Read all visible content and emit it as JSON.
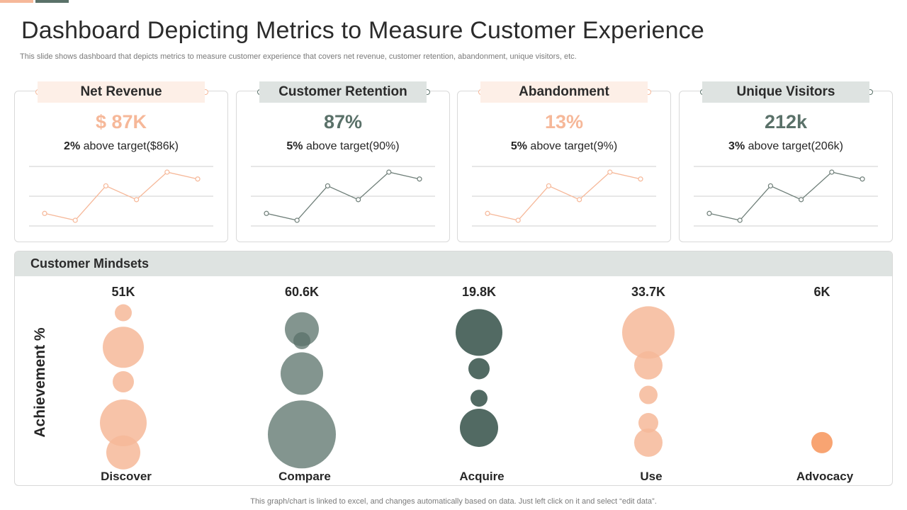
{
  "title": "Dashboard Depicting Metrics to Measure Customer Experience",
  "subtitle": "This slide shows dashboard that depicts metrics to measure customer experience that covers net revenue, customer retention, abandonment, unique visitors, etc.",
  "colors": {
    "peach": "#f6b899",
    "slate": "#5a7169",
    "orange": "#f79a63",
    "tab_peach": "#fdefe7",
    "tab_gray": "#dee3e1"
  },
  "kpis": [
    {
      "name": "Net Revenue",
      "value": "$ 87K",
      "delta": "2%",
      "target_text": "above target($86k)",
      "theme": "peach",
      "trend": [
        3,
        2,
        7,
        5,
        9,
        8
      ]
    },
    {
      "name": "Customer Retention",
      "value": "87%",
      "delta": "5%",
      "target_text": "above target(90%)",
      "theme": "slate",
      "trend": [
        3,
        2,
        7,
        5,
        9,
        8
      ]
    },
    {
      "name": "Abandonment",
      "value": "13%",
      "delta": "5%",
      "target_text": "above target(9%)",
      "theme": "peach",
      "trend": [
        3,
        2,
        7,
        5,
        9,
        8
      ]
    },
    {
      "name": "Unique Visitors",
      "value": "212k",
      "delta": "3%",
      "target_text": "above target(206k)",
      "theme": "slate",
      "trend": [
        3,
        2,
        7,
        5,
        9,
        8
      ]
    }
  ],
  "mindsets": {
    "header": "Customer Mindsets",
    "y_axis_label": "Achievement %"
  },
  "footer": "This graph/chart is linked to excel,  and changes automatically based on data. Just left click on it and select “edit data”.",
  "chart_data": {
    "type": "bubble",
    "title": "Customer Mindsets",
    "ylabel": "Achievement %",
    "ylim": [
      0,
      100
    ],
    "categories": [
      "Discover",
      "Compare",
      "Acquire",
      "Use",
      "Advocacy"
    ],
    "totals": [
      "51K",
      "60.6K",
      "19.8K",
      "33.7K",
      "6K"
    ],
    "category_colors": [
      "#f6b899",
      "#5a7169",
      "#3f5a52",
      "#f6b899",
      "#f79a63"
    ],
    "bubbles": [
      [
        {
          "y": 92,
          "size": 12
        },
        {
          "y": 71,
          "size": 29
        },
        {
          "y": 50,
          "size": 15
        },
        {
          "y": 25,
          "size": 33
        },
        {
          "y": 7,
          "size": 24
        }
      ],
      [
        {
          "y": 82,
          "size": 24
        },
        {
          "y": 75,
          "size": 12
        },
        {
          "y": 55,
          "size": 30
        },
        {
          "y": 18,
          "size": 48
        }
      ],
      [
        {
          "y": 80,
          "size": 33
        },
        {
          "y": 58,
          "size": 15
        },
        {
          "y": 40,
          "size": 12
        },
        {
          "y": 22,
          "size": 27
        }
      ],
      [
        {
          "y": 80,
          "size": 37
        },
        {
          "y": 60,
          "size": 20
        },
        {
          "y": 42,
          "size": 13
        },
        {
          "y": 25,
          "size": 14
        },
        {
          "y": 13,
          "size": 20
        }
      ],
      [
        {
          "y": 13,
          "size": 15
        }
      ]
    ]
  }
}
